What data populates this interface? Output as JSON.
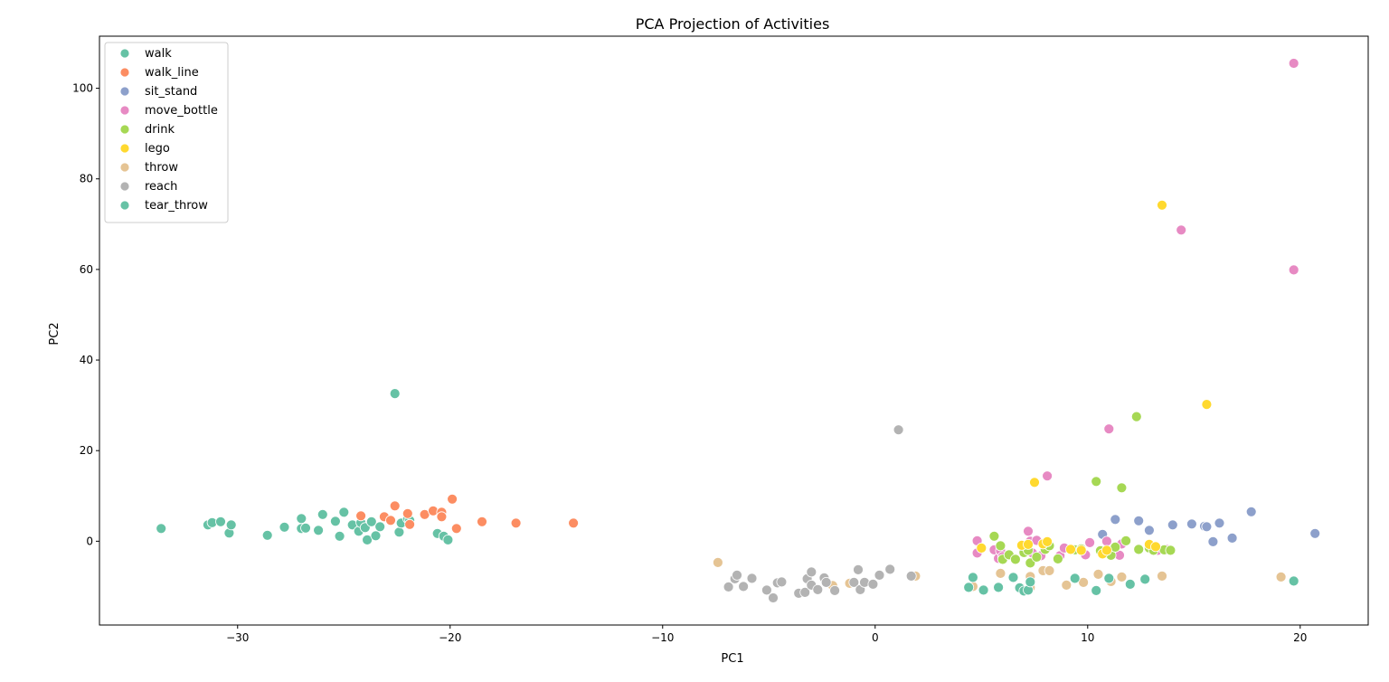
{
  "chart_data": {
    "type": "scatter",
    "title": "PCA Projection of Activities",
    "xlabel": "PC1",
    "ylabel": "PC2",
    "xlim": [
      -36.5,
      23.2
    ],
    "ylim": [
      -18.5,
      111.5
    ],
    "xticks": [
      -30,
      -20,
      -10,
      0,
      10,
      20
    ],
    "yticks": [
      0,
      20,
      40,
      60,
      80,
      100
    ],
    "grid": false,
    "legend_position": "top-left",
    "series": [
      {
        "name": "walk",
        "color": "#66c2a5",
        "points": [
          [
            -33.6,
            2.8
          ],
          [
            -31.4,
            3.6
          ],
          [
            -31.2,
            4.1
          ],
          [
            -30.8,
            4.3
          ],
          [
            -30.4,
            1.8
          ],
          [
            -30.3,
            3.6
          ],
          [
            -28.6,
            1.3
          ],
          [
            -27.8,
            3.1
          ],
          [
            -27.0,
            5.0
          ],
          [
            -27.0,
            2.8
          ],
          [
            -26.8,
            2.9
          ],
          [
            -26.2,
            2.4
          ],
          [
            -26.0,
            5.9
          ],
          [
            -25.4,
            4.4
          ],
          [
            -25.2,
            1.1
          ],
          [
            -25.0,
            6.4
          ],
          [
            -24.6,
            3.6
          ],
          [
            -24.3,
            2.2
          ],
          [
            -24.2,
            4.1
          ],
          [
            -24.0,
            3.0
          ],
          [
            -23.9,
            0.3
          ],
          [
            -23.7,
            4.3
          ],
          [
            -23.5,
            1.2
          ],
          [
            -23.3,
            3.2
          ],
          [
            -22.6,
            32.6
          ],
          [
            -22.4,
            2.0
          ],
          [
            -22.3,
            4.0
          ],
          [
            -22.0,
            5.0
          ],
          [
            -21.9,
            4.6
          ],
          [
            -20.6,
            1.7
          ],
          [
            -20.3,
            1.1
          ],
          [
            -20.1,
            0.3
          ]
        ]
      },
      {
        "name": "walk_line",
        "color": "#fc8d62",
        "points": [
          [
            -24.2,
            5.6
          ],
          [
            -23.1,
            5.4
          ],
          [
            -22.8,
            4.6
          ],
          [
            -22.6,
            7.8
          ],
          [
            -22.0,
            6.1
          ],
          [
            -21.9,
            3.7
          ],
          [
            -21.2,
            5.9
          ],
          [
            -20.8,
            6.7
          ],
          [
            -20.4,
            6.4
          ],
          [
            -20.4,
            5.4
          ],
          [
            -19.9,
            9.3
          ],
          [
            -19.7,
            2.8
          ],
          [
            -18.5,
            4.3
          ],
          [
            -16.9,
            4.0
          ],
          [
            -14.2,
            4.0
          ]
        ]
      },
      {
        "name": "sit_stand",
        "color": "#8da0cb",
        "points": [
          [
            10.7,
            1.5
          ],
          [
            11.3,
            4.8
          ],
          [
            12.4,
            4.5
          ],
          [
            12.9,
            2.4
          ],
          [
            14.0,
            3.6
          ],
          [
            14.9,
            3.8
          ],
          [
            15.5,
            3.3
          ],
          [
            15.6,
            3.2
          ],
          [
            15.9,
            -0.1
          ],
          [
            16.2,
            4.0
          ],
          [
            16.8,
            0.7
          ],
          [
            17.7,
            6.5
          ],
          [
            20.7,
            1.7
          ]
        ]
      },
      {
        "name": "move_bottle",
        "color": "#e78ac3",
        "points": [
          [
            19.7,
            105.5
          ],
          [
            14.4,
            68.7
          ],
          [
            19.7,
            59.9
          ],
          [
            11.0,
            24.8
          ],
          [
            8.1,
            14.4
          ],
          [
            4.8,
            0.1
          ],
          [
            4.8,
            -2.6
          ],
          [
            5.6,
            -1.9
          ],
          [
            5.8,
            -3.8
          ],
          [
            5.9,
            -2.1
          ],
          [
            6.0,
            -3.4
          ],
          [
            7.2,
            2.2
          ],
          [
            7.3,
            0.0
          ],
          [
            7.4,
            -2.6
          ],
          [
            7.6,
            0.2
          ],
          [
            7.8,
            -3.2
          ],
          [
            8.7,
            -3.2
          ],
          [
            8.9,
            -1.5
          ],
          [
            9.4,
            -1.8
          ],
          [
            9.9,
            -3.0
          ],
          [
            10.1,
            -0.3
          ],
          [
            10.9,
            0.0
          ],
          [
            11.5,
            -3.1
          ],
          [
            11.6,
            -0.6
          ],
          [
            13.3,
            -2.0
          ],
          [
            13.7,
            -1.8
          ]
        ]
      },
      {
        "name": "drink",
        "color": "#a6d854",
        "points": [
          [
            12.3,
            27.5
          ],
          [
            10.4,
            13.2
          ],
          [
            11.6,
            11.8
          ],
          [
            5.6,
            1.1
          ],
          [
            5.9,
            -1.0
          ],
          [
            6.0,
            -4.0
          ],
          [
            6.3,
            -3.0
          ],
          [
            6.6,
            -4.0
          ],
          [
            7.0,
            -2.5
          ],
          [
            7.2,
            -2.0
          ],
          [
            7.3,
            -4.8
          ],
          [
            7.6,
            -3.5
          ],
          [
            8.0,
            -1.8
          ],
          [
            8.2,
            -1.0
          ],
          [
            8.6,
            -3.9
          ],
          [
            9.4,
            -1.9
          ],
          [
            9.7,
            -1.7
          ],
          [
            10.6,
            -2.1
          ],
          [
            11.1,
            -3.1
          ],
          [
            11.3,
            -1.3
          ],
          [
            11.8,
            0.1
          ],
          [
            12.4,
            -1.8
          ],
          [
            12.9,
            -1.5
          ],
          [
            13.1,
            -2.0
          ],
          [
            13.6,
            -1.9
          ],
          [
            13.9,
            -2.0
          ]
        ]
      },
      {
        "name": "lego",
        "color": "#ffd92f",
        "points": [
          [
            13.5,
            74.2
          ],
          [
            15.6,
            30.2
          ],
          [
            7.5,
            13.0
          ],
          [
            5.0,
            -1.5
          ],
          [
            6.9,
            -0.9
          ],
          [
            7.2,
            -0.7
          ],
          [
            7.9,
            -0.6
          ],
          [
            8.1,
            -0.1
          ],
          [
            9.2,
            -1.8
          ],
          [
            9.7,
            -2.0
          ],
          [
            10.7,
            -2.8
          ],
          [
            10.9,
            -2.0
          ],
          [
            12.9,
            -0.7
          ],
          [
            13.2,
            -1.2
          ]
        ]
      },
      {
        "name": "throw",
        "color": "#e5c494",
        "points": [
          [
            -7.4,
            -4.7
          ],
          [
            -2.0,
            -9.8
          ],
          [
            -1.2,
            -9.3
          ],
          [
            1.9,
            -7.7
          ],
          [
            4.6,
            -10.0
          ],
          [
            5.9,
            -7.1
          ],
          [
            7.3,
            -7.8
          ],
          [
            7.3,
            -10.2
          ],
          [
            7.9,
            -6.5
          ],
          [
            8.2,
            -6.5
          ],
          [
            9.0,
            -9.7
          ],
          [
            9.8,
            -9.1
          ],
          [
            10.5,
            -7.3
          ],
          [
            11.1,
            -8.9
          ],
          [
            11.6,
            -7.9
          ],
          [
            13.5,
            -7.7
          ],
          [
            19.1,
            -7.9
          ]
        ]
      },
      {
        "name": "reach",
        "color": "#b3b3b3",
        "points": [
          [
            1.1,
            24.6
          ],
          [
            -6.9,
            -10.1
          ],
          [
            -6.6,
            -8.3
          ],
          [
            -6.5,
            -7.5
          ],
          [
            -6.2,
            -10.0
          ],
          [
            -5.8,
            -8.2
          ],
          [
            -5.1,
            -10.8
          ],
          [
            -4.8,
            -12.5
          ],
          [
            -4.6,
            -9.2
          ],
          [
            -4.4,
            -9.0
          ],
          [
            -3.6,
            -11.5
          ],
          [
            -3.3,
            -11.3
          ],
          [
            -3.2,
            -8.3
          ],
          [
            -3.0,
            -6.8
          ],
          [
            -3.0,
            -9.7
          ],
          [
            -2.7,
            -10.7
          ],
          [
            -2.4,
            -8.1
          ],
          [
            -2.3,
            -9.1
          ],
          [
            -1.9,
            -10.9
          ],
          [
            -1.0,
            -9.1
          ],
          [
            -0.8,
            -6.3
          ],
          [
            -0.7,
            -10.7
          ],
          [
            -0.5,
            -9.1
          ],
          [
            -0.1,
            -9.5
          ],
          [
            0.2,
            -7.5
          ],
          [
            0.7,
            -6.2
          ],
          [
            1.7,
            -7.7
          ]
        ]
      },
      {
        "name": "tear_throw",
        "color": "#66c2a5",
        "points": [
          [
            4.4,
            -10.2
          ],
          [
            4.6,
            -8.0
          ],
          [
            5.1,
            -10.8
          ],
          [
            5.8,
            -10.2
          ],
          [
            6.5,
            -8.0
          ],
          [
            6.8,
            -10.3
          ],
          [
            7.0,
            -11.0
          ],
          [
            7.2,
            -10.8
          ],
          [
            7.3,
            -9.0
          ],
          [
            9.4,
            -8.2
          ],
          [
            10.4,
            -10.9
          ],
          [
            11.0,
            -8.2
          ],
          [
            12.0,
            -9.5
          ],
          [
            12.7,
            -8.4
          ],
          [
            19.7,
            -8.8
          ]
        ]
      }
    ]
  }
}
